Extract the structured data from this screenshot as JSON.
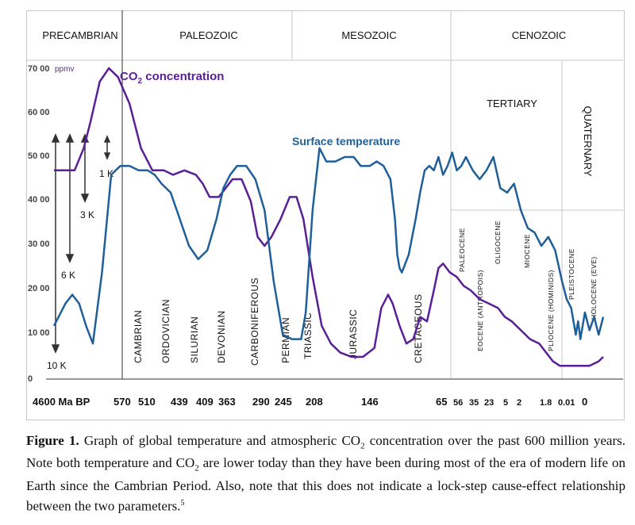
{
  "chart_data": {
    "type": "line",
    "y_ticks": [
      "70 00",
      "60 00",
      "50 00",
      "40 00",
      "30 00",
      "20 00",
      "10 00",
      "0"
    ],
    "y_unit": "ppmv",
    "x_ticks": [
      "4600 Ma BP",
      "570",
      "510",
      "439",
      "409",
      "363",
      "290",
      "245",
      "208",
      "146",
      "65",
      "56",
      "35",
      "23",
      "5",
      "2",
      "1.8",
      "0.01",
      "0"
    ],
    "eras": [
      "PRECAMBRIAN",
      "PALEOZOIC",
      "MESOZOIC",
      "CENOZOIC"
    ],
    "sub_eras": [
      "TERTIARY",
      "QUATERNARY"
    ],
    "periods": [
      "CAMBRIAN",
      "ORDOVICIAN",
      "SILURIAN",
      "DEVONIAN",
      "CARBONIFEROUS",
      "PERMIAN",
      "TRIASSIC",
      "JURASSIC",
      "CRETACEOUS"
    ],
    "epochs": [
      "PALEOCENE",
      "EOCENE (ANTROPOIS)",
      "OLIGOCENE",
      "MIOCENE",
      "PLIOCENE (HOMINIDS)",
      "PLEISTOCENE",
      "HOLOCENE (EVE)"
    ],
    "series": [
      {
        "name": "CO2 concentration",
        "label_main": "CO",
        "label_sub": "2",
        "label_rest": " concentration",
        "color": "#5a1f96",
        "points": [
          [
            0,
            4700
          ],
          [
            9,
            4700
          ],
          [
            13,
            5200
          ],
          [
            16,
            5800
          ],
          [
            20,
            6700
          ],
          [
            24,
            7000
          ],
          [
            28,
            6800
          ],
          [
            33,
            6200
          ],
          [
            38,
            5200
          ],
          [
            43,
            4700
          ],
          [
            48,
            4700
          ],
          [
            52,
            4600
          ],
          [
            57,
            4700
          ],
          [
            62,
            4600
          ],
          [
            65,
            4400
          ],
          [
            68,
            4100
          ],
          [
            72,
            4100
          ],
          [
            75,
            4300
          ],
          [
            78,
            4500
          ],
          [
            82,
            4500
          ],
          [
            86,
            4000
          ],
          [
            89,
            3200
          ],
          [
            92,
            3000
          ],
          [
            95,
            3200
          ],
          [
            99,
            3600
          ],
          [
            103,
            4100
          ],
          [
            106,
            4100
          ],
          [
            109,
            3600
          ],
          [
            113,
            2300
          ],
          [
            117,
            1200
          ],
          [
            121,
            800
          ],
          [
            125,
            600
          ],
          [
            130,
            500
          ],
          [
            135,
            500
          ],
          [
            140,
            700
          ],
          [
            143,
            1600
          ],
          [
            146,
            1900
          ],
          [
            148,
            1700
          ],
          [
            151,
            1200
          ],
          [
            154,
            800
          ],
          [
            157,
            900
          ],
          [
            160,
            1400
          ],
          [
            163,
            1300
          ],
          [
            166,
            2000
          ],
          [
            168,
            2500
          ],
          [
            170,
            2600
          ],
          [
            173,
            2400
          ],
          [
            176,
            2300
          ],
          [
            179,
            2100
          ],
          [
            182,
            2000
          ],
          [
            186,
            1800
          ],
          [
            190,
            1700
          ],
          [
            194,
            1600
          ],
          [
            197,
            1400
          ],
          [
            200,
            1300
          ],
          [
            204,
            1100
          ],
          [
            208,
            900
          ],
          [
            212,
            800
          ],
          [
            215,
            600
          ],
          [
            218,
            400
          ],
          [
            221,
            300
          ],
          [
            228,
            300
          ],
          [
            234,
            300
          ],
          [
            238,
            400
          ],
          [
            240,
            500
          ]
        ]
      },
      {
        "name": "Surface temperature",
        "label": "Surface temperature",
        "color": "#1f5f9a",
        "points": [
          [
            0,
            1200
          ],
          [
            5,
            1700
          ],
          [
            8,
            1900
          ],
          [
            11,
            1700
          ],
          [
            14,
            1200
          ],
          [
            17,
            800
          ],
          [
            21,
            2400
          ],
          [
            25,
            4600
          ],
          [
            29,
            4800
          ],
          [
            33,
            4800
          ],
          [
            37,
            4700
          ],
          [
            41,
            4700
          ],
          [
            44,
            4600
          ],
          [
            47,
            4400
          ],
          [
            51,
            4200
          ],
          [
            55,
            3600
          ],
          [
            59,
            3000
          ],
          [
            63,
            2700
          ],
          [
            67,
            2900
          ],
          [
            71,
            3600
          ],
          [
            74,
            4300
          ],
          [
            77,
            4600
          ],
          [
            80,
            4800
          ],
          [
            84,
            4800
          ],
          [
            88,
            4500
          ],
          [
            92,
            3800
          ],
          [
            96,
            2200
          ],
          [
            100,
            1000
          ],
          [
            104,
            900
          ],
          [
            108,
            900
          ],
          [
            110,
            1500
          ],
          [
            113,
            3800
          ],
          [
            116,
            5200
          ],
          [
            119,
            4900
          ],
          [
            123,
            4900
          ],
          [
            127,
            5000
          ],
          [
            131,
            5000
          ],
          [
            134,
            4800
          ],
          [
            138,
            4800
          ],
          [
            141,
            4900
          ],
          [
            144,
            4800
          ],
          [
            147,
            4500
          ],
          [
            149,
            3600
          ],
          [
            150,
            2800
          ],
          [
            151,
            2500
          ],
          [
            152,
            2400
          ],
          [
            155,
            2800
          ],
          [
            158,
            3600
          ],
          [
            160,
            4200
          ],
          [
            162,
            4700
          ],
          [
            164,
            4800
          ],
          [
            166,
            4700
          ],
          [
            168,
            5000
          ],
          [
            170,
            4600
          ],
          [
            172,
            4800
          ],
          [
            174,
            5100
          ],
          [
            176,
            4700
          ],
          [
            178,
            4800
          ],
          [
            180,
            5000
          ],
          [
            183,
            4700
          ],
          [
            186,
            4500
          ],
          [
            189,
            4700
          ],
          [
            192,
            5000
          ],
          [
            195,
            4300
          ],
          [
            198,
            4200
          ],
          [
            201,
            4400
          ],
          [
            204,
            3800
          ],
          [
            207,
            3400
          ],
          [
            210,
            3300
          ],
          [
            213,
            3000
          ],
          [
            216,
            3200
          ],
          [
            219,
            2900
          ],
          [
            222,
            2200
          ],
          [
            224,
            1800
          ],
          [
            226,
            1600
          ],
          [
            228,
            1000
          ],
          [
            229,
            1300
          ],
          [
            230,
            900
          ],
          [
            232,
            1500
          ],
          [
            234,
            1100
          ],
          [
            236,
            1400
          ],
          [
            238,
            1000
          ],
          [
            240,
            1400
          ]
        ]
      }
    ],
    "annotations": [
      "1 K",
      "3 K",
      "6 K",
      "10 K"
    ],
    "grid": false,
    "title": ""
  },
  "caption": {
    "figure_label": "Figure 1.",
    "line1_a": " Graph of global temperature and atmospheric CO",
    "line1_sub": "2",
    "line1_b": " concentration over the past",
    "line2_a": "600 million years. Note both temperature and CO",
    "line2_sub": "2",
    "line2_b": " are lower today than they have been",
    "line3": "during most of the era of modern life on Earth since the Cambrian Period. Also, note that",
    "line4": "this does not indicate a lock-step cause-effect relationship between the two parameters.",
    "footnote": "5"
  }
}
